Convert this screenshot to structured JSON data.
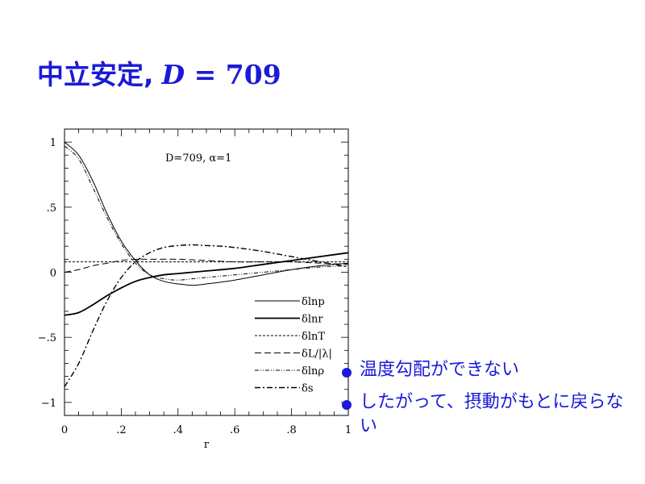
{
  "slide": {
    "title_text": "中立安定,",
    "title_eq_var": "D",
    "title_eq_rest": " = 709"
  },
  "bullets": [
    {
      "text": "温度勾配ができない"
    },
    {
      "text": "したがって、摂動がもとに戻らない"
    }
  ],
  "colors": {
    "accent": "#1a1ad8",
    "ink": "#000000"
  },
  "chart_data": {
    "type": "line",
    "annotation": "D=709,  α=1",
    "xlabel": "r",
    "ylabel": "",
    "xlim": [
      0,
      1
    ],
    "ylim": [
      -1.1,
      1.1
    ],
    "xticks": [
      0,
      0.2,
      0.4,
      0.6,
      0.8,
      1
    ],
    "xtick_labels": [
      "0",
      ".2",
      ".4",
      ".6",
      ".8",
      "1"
    ],
    "yticks": [
      1,
      0.5,
      0,
      -0.5,
      -1
    ],
    "ytick_labels": [
      "1",
      ".5",
      "0",
      "−.5",
      "−1"
    ],
    "legend_placement": "lower-right",
    "series": [
      {
        "name": "δlnp",
        "style": "solid-thin",
        "x": [
          0,
          0.05,
          0.1,
          0.15,
          0.2,
          0.25,
          0.3,
          0.35,
          0.4,
          0.45,
          0.5,
          0.6,
          0.7,
          0.8,
          0.9,
          1.0
        ],
        "y": [
          1.0,
          0.9,
          0.7,
          0.45,
          0.24,
          0.09,
          -0.02,
          -0.07,
          -0.09,
          -0.1,
          -0.09,
          -0.06,
          -0.02,
          0.02,
          0.05,
          0.07
        ]
      },
      {
        "name": "δlnr",
        "style": "solid-thick",
        "x": [
          0,
          0.05,
          0.1,
          0.15,
          0.2,
          0.25,
          0.3,
          0.35,
          0.4,
          0.45,
          0.5,
          0.6,
          0.7,
          0.8,
          0.9,
          1.0
        ],
        "y": [
          -0.33,
          -0.31,
          -0.25,
          -0.18,
          -0.12,
          -0.07,
          -0.04,
          -0.02,
          -0.01,
          0.0,
          0.01,
          0.03,
          0.06,
          0.09,
          0.12,
          0.15
        ]
      },
      {
        "name": "δlnT",
        "style": "short-dash",
        "x": [
          0,
          0.1,
          0.2,
          0.3,
          0.4,
          0.5,
          0.6,
          0.7,
          0.8,
          0.9,
          1.0
        ],
        "y": [
          0.08,
          0.08,
          0.08,
          0.08,
          0.08,
          0.08,
          0.08,
          0.08,
          0.08,
          0.08,
          0.08
        ]
      },
      {
        "name": "δL/|λ|",
        "style": "long-dash",
        "x": [
          0,
          0.05,
          0.1,
          0.15,
          0.2,
          0.25,
          0.3,
          0.4,
          0.5,
          0.6,
          0.7,
          0.8,
          0.9,
          1.0
        ],
        "y": [
          0.0,
          0.02,
          0.05,
          0.07,
          0.09,
          0.1,
          0.1,
          0.1,
          0.09,
          0.08,
          0.08,
          0.08,
          0.07,
          0.06
        ]
      },
      {
        "name": "δlnρ",
        "style": "dash-dot-dot",
        "x": [
          0,
          0.05,
          0.1,
          0.15,
          0.2,
          0.25,
          0.3,
          0.35,
          0.4,
          0.45,
          0.5,
          0.6,
          0.7,
          0.8,
          0.9,
          1.0
        ],
        "y": [
          0.97,
          0.87,
          0.65,
          0.42,
          0.22,
          0.07,
          -0.02,
          -0.05,
          -0.06,
          -0.05,
          -0.04,
          -0.02,
          0.0,
          0.02,
          0.04,
          0.05
        ]
      },
      {
        "name": "δs",
        "style": "dash-dot",
        "x": [
          0,
          0.05,
          0.1,
          0.15,
          0.2,
          0.25,
          0.3,
          0.35,
          0.4,
          0.45,
          0.5,
          0.55,
          0.6,
          0.7,
          0.8,
          0.9,
          1.0
        ],
        "y": [
          -0.88,
          -0.7,
          -0.45,
          -0.22,
          -0.04,
          0.08,
          0.15,
          0.19,
          0.205,
          0.21,
          0.205,
          0.2,
          0.19,
          0.16,
          0.12,
          0.08,
          0.04
        ]
      }
    ]
  }
}
